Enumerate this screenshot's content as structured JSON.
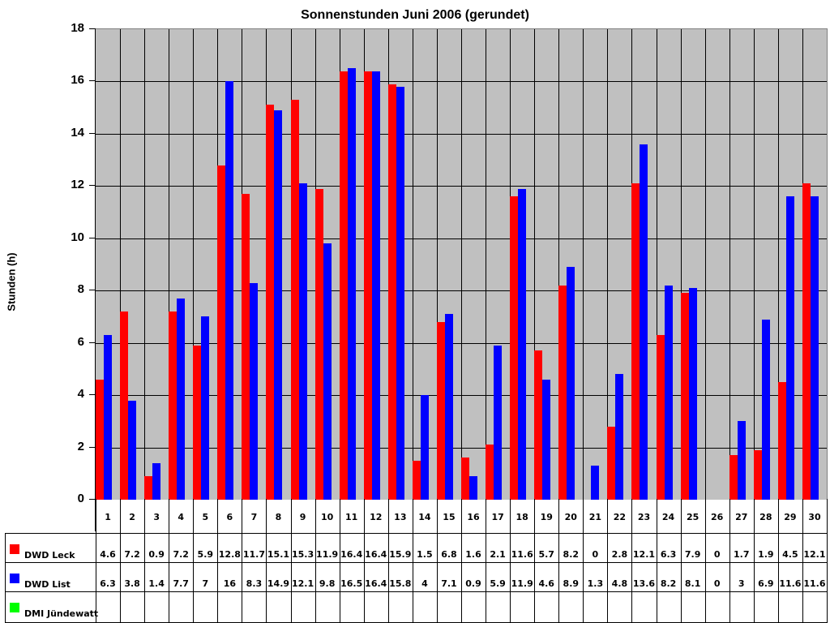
{
  "chart_data": {
    "type": "bar",
    "title": "Sonnenstunden Juni 2006 (gerundet)",
    "xlabel": "",
    "ylabel": "Stunden (h)",
    "ylim": [
      0,
      18
    ],
    "yticks": [
      0,
      2,
      4,
      6,
      8,
      10,
      12,
      14,
      16,
      18
    ],
    "grid": true,
    "legend_position": "data-table-left",
    "categories": [
      "1",
      "2",
      "3",
      "4",
      "5",
      "6",
      "7",
      "8",
      "9",
      "10",
      "11",
      "12",
      "13",
      "14",
      "15",
      "16",
      "17",
      "18",
      "19",
      "20",
      "21",
      "22",
      "23",
      "24",
      "25",
      "26",
      "27",
      "28",
      "29",
      "30"
    ],
    "series": [
      {
        "name": "DWD Leck",
        "color": "#ff0000",
        "values": [
          4.6,
          7.2,
          0.9,
          7.2,
          5.9,
          12.8,
          11.7,
          15.1,
          15.3,
          11.9,
          16.4,
          16.4,
          15.9,
          1.5,
          6.8,
          1.6,
          2.1,
          11.6,
          5.7,
          8.2,
          0,
          2.8,
          12.1,
          6.3,
          7.9,
          0,
          1.7,
          1.9,
          4.5,
          12.1
        ]
      },
      {
        "name": "DWD List",
        "color": "#0000ff",
        "values": [
          6.3,
          3.8,
          1.4,
          7.7,
          7,
          16,
          8.3,
          14.9,
          12.1,
          9.8,
          16.5,
          16.4,
          15.8,
          4,
          7.1,
          0.9,
          5.9,
          11.9,
          4.6,
          8.9,
          1.3,
          4.8,
          13.6,
          8.2,
          8.1,
          0,
          3,
          6.9,
          11.6,
          11.6
        ]
      },
      {
        "name": "DMI Jündewatt",
        "color": "#00ff00",
        "values": [
          null,
          null,
          null,
          null,
          null,
          null,
          null,
          null,
          null,
          null,
          null,
          null,
          null,
          null,
          null,
          null,
          null,
          null,
          null,
          null,
          null,
          null,
          null,
          null,
          null,
          null,
          null,
          null,
          null,
          null
        ]
      }
    ]
  },
  "table": {
    "rows": [
      {
        "label": "DWD Leck",
        "cells": [
          "4.6",
          "7.2",
          "0.9",
          "7.2",
          "5.9",
          "12.8",
          "11.7",
          "15.1",
          "15.3",
          "11.9",
          "16.4",
          "16.4",
          "15.9",
          "1.5",
          "6.8",
          "1.6",
          "2.1",
          "11.6",
          "5.7",
          "8.2",
          "0",
          "2.8",
          "12.1",
          "6.3",
          "7.9",
          "0",
          "1.7",
          "1.9",
          "4.5",
          "12.1"
        ]
      },
      {
        "label": "DWD List",
        "cells": [
          "6.3",
          "3.8",
          "1.4",
          "7.7",
          "7",
          "16",
          "8.3",
          "14.9",
          "12.1",
          "9.8",
          "16.5",
          "16.4",
          "15.8",
          "4",
          "7.1",
          "0.9",
          "5.9",
          "11.9",
          "4.6",
          "8.9",
          "1.3",
          "4.8",
          "13.6",
          "8.2",
          "8.1",
          "0",
          "3",
          "6.9",
          "11.6",
          "11.6"
        ]
      },
      {
        "label": "DMI Jündewatt",
        "cells": [
          "",
          "",
          "",
          "",
          "",
          "",
          "",
          "",
          "",
          "",
          "",
          "",
          "",
          "",
          "",
          "",
          "",
          "",
          "",
          "",
          "",
          "",
          "",
          "",
          "",
          "",
          "",
          "",
          "",
          ""
        ]
      }
    ]
  }
}
